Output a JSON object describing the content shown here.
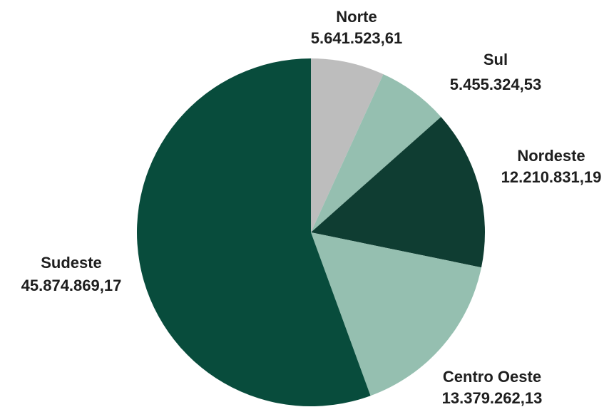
{
  "chart_data": {
    "type": "pie",
    "categories": [
      "Norte",
      "Sul",
      "Nordeste",
      "Centro Oeste",
      "Sudeste"
    ],
    "values": [
      5641523.61,
      5455324.53,
      12210831.19,
      13379262.13,
      45874869.17
    ],
    "value_labels": [
      "5.641.523,61",
      "5.455.324,53",
      "12.210.831,19",
      "13.379.262,13",
      "45.874.869,17"
    ],
    "colors": [
      "#bdbdbd",
      "#95bfb0",
      "#0f3d32",
      "#95bfb0",
      "#084c3c"
    ]
  }
}
